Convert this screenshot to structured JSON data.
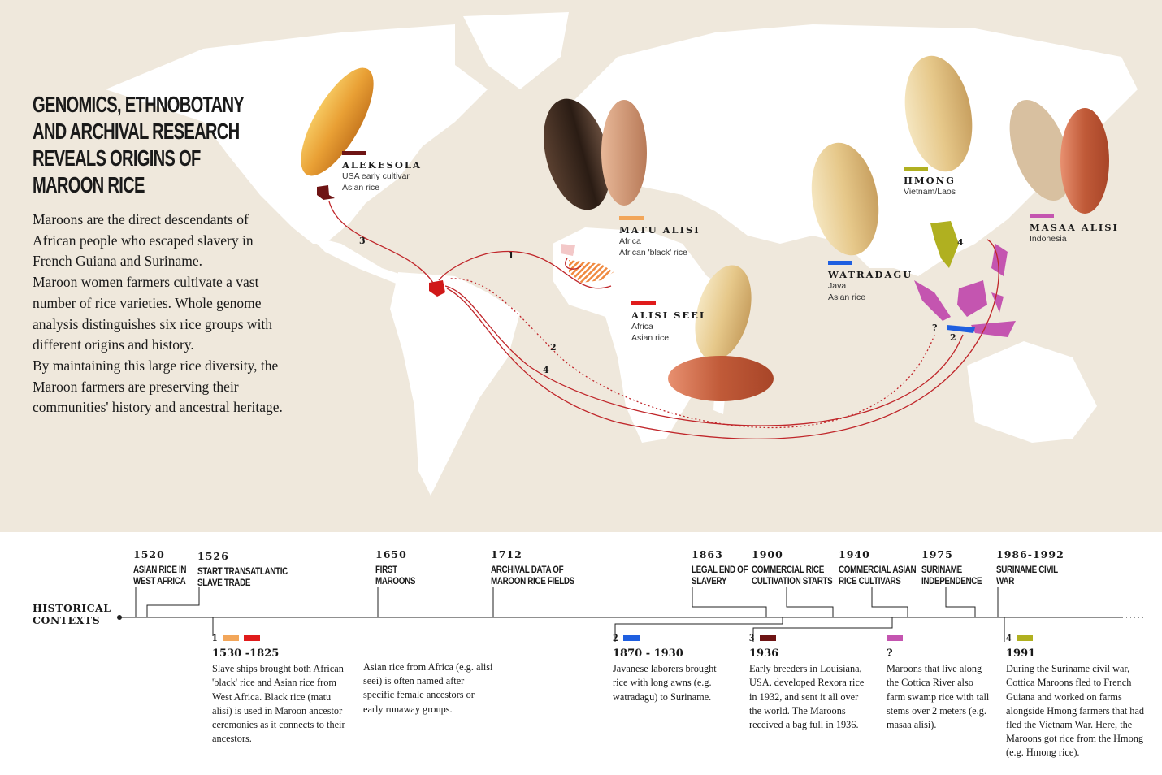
{
  "title": "GENOMICS, ETHNOBOTANY AND ARCHIVAL RESEARCH REVEALS ORIGINS OF MAROON RICE",
  "intro": [
    "Maroons are the direct descendants of African people who escaped slavery in French Guiana and Suriname.",
    "Maroon women farmers cultivate a vast number of rice varieties. Whole genome analysis distinguishes six rice groups with different origins and history.",
    "By maintaining this large rice diversity, the Maroon farmers are preserving their communities' history and ancestral heritage."
  ],
  "rice_groups": [
    {
      "name": "ALEKESOLA",
      "lines": [
        "USA early cultivar",
        "Asian rice"
      ],
      "color": "#6e1414"
    },
    {
      "name": "MATU ALISI",
      "lines": [
        "Africa",
        "African 'black' rice"
      ],
      "color": "#f2a65a"
    },
    {
      "name": "ALISI SEEI",
      "lines": [
        "Africa",
        "Asian rice"
      ],
      "color": "#e01b1b"
    },
    {
      "name": "WATRADAGU",
      "lines": [
        "Java",
        "Asian rice"
      ],
      "color": "#1f5fe0"
    },
    {
      "name": "HMONG",
      "lines": [
        "Vietnam/Laos"
      ],
      "color": "#b0b020"
    },
    {
      "name": "MASAA ALISI",
      "lines": [
        "Indonesia"
      ],
      "color": "#c455b0"
    }
  ],
  "routes": {
    "r1": "1",
    "r2": "2",
    "r3": "3",
    "r4": "4",
    "unknown": "?"
  },
  "route_color": "#c0262a",
  "timeline": {
    "label": "HISTORICAL CONTEXTS",
    "events": [
      {
        "year": "1520",
        "title": "ASIAN RICE IN WEST AFRICA"
      },
      {
        "year": "1526",
        "title": "START TRANSATLANTIC SLAVE TRADE"
      },
      {
        "year": "1650",
        "title": "FIRST MAROONS"
      },
      {
        "year": "1712",
        "title": "ARCHIVAL DATA OF MAROON RICE FIELDS"
      },
      {
        "year": "1863",
        "title": "LEGAL END OF SLAVERY"
      },
      {
        "year": "1900",
        "title": "COMMERCIAL RICE CULTIVATION STARTS"
      },
      {
        "year": "1940",
        "title": "COMMERCIAL ASIAN RICE CULTIVARS"
      },
      {
        "year": "1975",
        "title": "SURINAME INDEPENDENCE"
      },
      {
        "year": "1986-1992",
        "title": "SURINAME CIVIL WAR"
      }
    ],
    "periods": [
      {
        "num": "1",
        "colors": [
          "#f2a65a",
          "#e01b1b"
        ],
        "year": "1530 -1825",
        "text": "Slave ships brought both African 'black' rice and Asian rice from West Africa. Black rice (matu alisi) is used in Maroon ancestor ceremonies as it connects to their ancestors."
      },
      {
        "num": "",
        "colors": [],
        "year": "",
        "text": "Asian rice from Africa (e.g. alisi seei) is often named after specific female ancestors or early runaway groups."
      },
      {
        "num": "2",
        "colors": [
          "#1f5fe0"
        ],
        "year": "1870 - 1930",
        "text": "Javanese laborers brought rice with long awns (e.g. watradagu) to Suriname."
      },
      {
        "num": "3",
        "colors": [
          "#6e1414"
        ],
        "year": "1936",
        "text": "Early breeders in Louisiana, USA, developed Rexora rice in 1932, and sent it all over the world. The Maroons received a bag full in 1936."
      },
      {
        "num": "",
        "colors": [
          "#c455b0"
        ],
        "year": "?",
        "text": "Maroons that live along the Cottica River also farm swamp rice with tall stems over 2 meters (e.g. masaa alisi)."
      },
      {
        "num": "4",
        "colors": [
          "#b0b020"
        ],
        "year": "1991",
        "text": "During the Suriname civil war, Cottica Maroons fled to French Guiana and worked on farms alongside Hmong farmers that had fled the Vietnam War. Here, the Maroons got rice from the Hmong (e.g. Hmong rice)."
      }
    ]
  }
}
